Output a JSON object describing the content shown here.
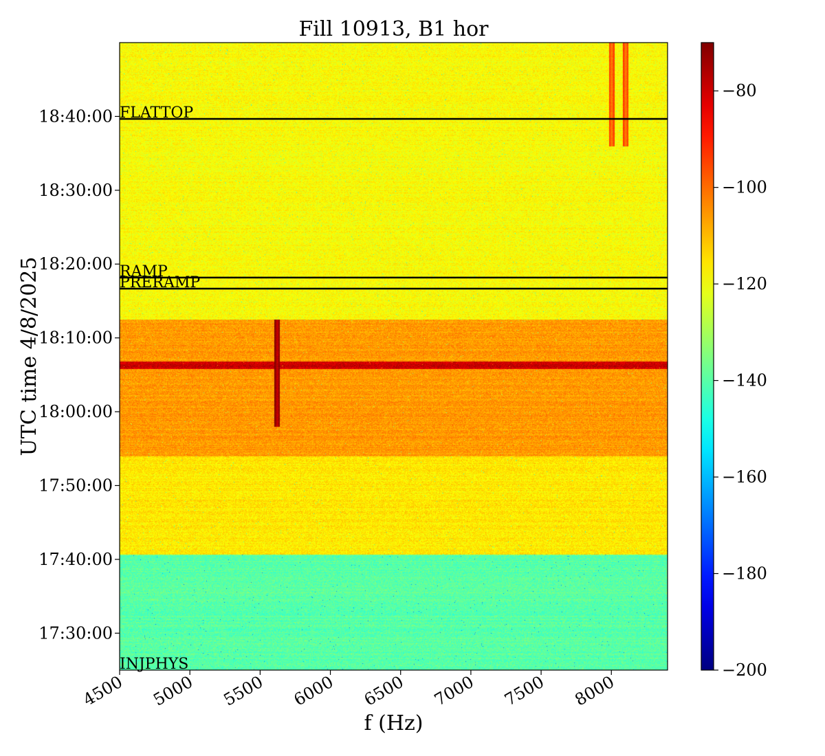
{
  "chart_data": {
    "type": "heatmap",
    "title": "Fill 10913, B1 hor",
    "xlabel": "f (Hz)",
    "ylabel": "UTC time 4/8/2025",
    "xlim": [
      4500,
      8400
    ],
    "x_ticks": [
      "4500",
      "5000",
      "5500",
      "6000",
      "6500",
      "7000",
      "7500",
      "8000"
    ],
    "ylim": [
      "17:25:00",
      "18:50:00"
    ],
    "y_ticks": [
      "17:30:00",
      "17:40:00",
      "17:50:00",
      "18:00:00",
      "18:10:00",
      "18:20:00",
      "18:30:00",
      "18:40:00"
    ],
    "colormap": "jet",
    "colorbar": {
      "range": [
        -200,
        -70
      ],
      "ticks": [
        "−80",
        "−100",
        "−120",
        "−140",
        "−160",
        "−180",
        "−200"
      ]
    },
    "phase_markers": [
      {
        "label": "INJPHYS",
        "time": "17:25:00",
        "line": false
      },
      {
        "label": "PRERAMP",
        "time": "18:16:40",
        "line": true
      },
      {
        "label": "RAMP",
        "time": "18:18:10",
        "line": true
      },
      {
        "label": "FLATTOP",
        "time": "18:39:40",
        "line": true
      }
    ],
    "intensity_regions": [
      {
        "from": "17:25:00",
        "to": "17:40:40",
        "level_dB": -140
      },
      {
        "from": "17:40:40",
        "to": "17:54:00",
        "level_dB": -116
      },
      {
        "from": "17:54:00",
        "to": "18:12:30",
        "level_dB": -106
      },
      {
        "from": "18:12:30",
        "to": "18:50:00",
        "level_dB": -119
      }
    ],
    "strong_band": {
      "from": "18:05:50",
      "to": "18:06:50",
      "level_dB": -80
    },
    "line_features": [
      {
        "f_hz": 5620,
        "from": "17:58:00",
        "to": "18:12:30",
        "level_dB": -80
      },
      {
        "f_hz": 8000,
        "from": "18:36:00",
        "to": "18:50:00",
        "level_dB": -103
      },
      {
        "f_hz": 8100,
        "from": "18:36:00",
        "to": "18:50:00",
        "level_dB": -103
      }
    ]
  }
}
